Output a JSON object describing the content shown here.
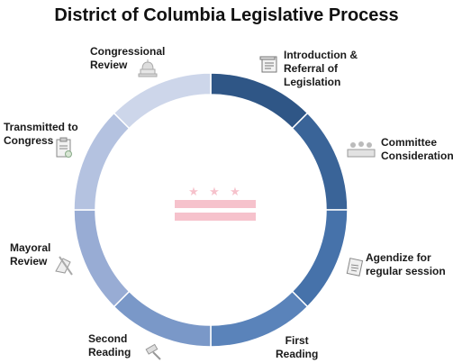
{
  "title": "District of Columbia Legislative Process",
  "steps": [
    {
      "lines": [
        "Introduction &",
        "Referral of",
        "Legislation"
      ],
      "color": "#2f5686",
      "icon": "document-icon"
    },
    {
      "lines": [
        "Committee",
        "Consideration"
      ],
      "color": "#3a6498",
      "icon": "committee-icon"
    },
    {
      "lines": [
        "Agendize for",
        "regular session"
      ],
      "color": "#4672aa",
      "icon": "agenda-icon"
    },
    {
      "lines": [
        "First",
        "Reading"
      ],
      "color": "#5a83ba",
      "icon": "gavel-icon"
    },
    {
      "lines": [
        "Second",
        "Reading"
      ],
      "color": "#7a98c8",
      "icon": "gavel-icon"
    },
    {
      "lines": [
        "Mayoral",
        "Review"
      ],
      "color": "#98acd4",
      "icon": "signing-icon"
    },
    {
      "lines": [
        "Transmitted to",
        "Congress"
      ],
      "color": "#b4c2e0",
      "icon": "clipboard-icon"
    },
    {
      "lines": [
        "Congressional",
        "Review"
      ],
      "color": "#cdd6ea",
      "icon": "capitol-icon"
    }
  ],
  "flag": {
    "stars": [
      "★",
      "★",
      "★"
    ],
    "color": "#f6c2cc",
    "icon": "dc-flag-icon"
  }
}
